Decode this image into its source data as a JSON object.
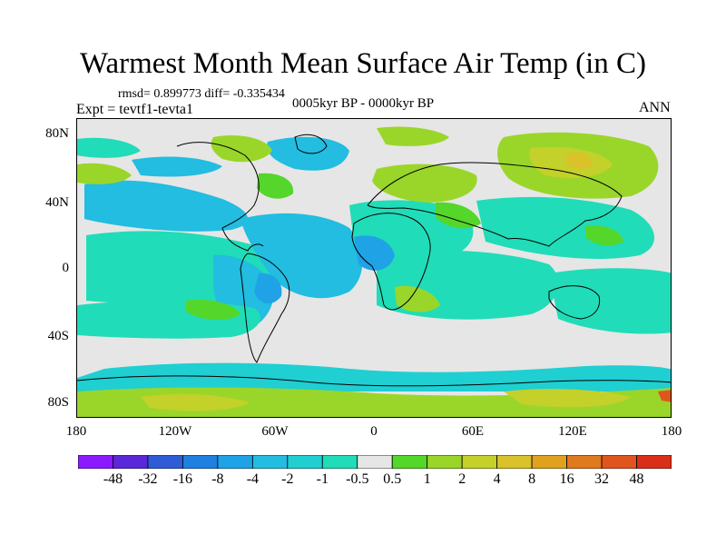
{
  "title": "Warmest Month Mean Surface Air Temp (in C)",
  "stats": "rmsd= 0.899773  diff= -0.335434",
  "experiment": "Expt = tevtf1-tevta1",
  "period": "0005kyr BP - 0000kyr BP",
  "season": "ANN",
  "lat_ticks": [
    "80N",
    "40N",
    "0",
    "40S",
    "80S"
  ],
  "lon_ticks": [
    "180",
    "120W",
    "60W",
    "0",
    "60E",
    "120E",
    "180"
  ],
  "colorbar": {
    "colors": [
      "#8c1aff",
      "#5a27d9",
      "#2f5bd6",
      "#1f80e0",
      "#1fa3e6",
      "#22bde0",
      "#1fcfd2",
      "#21dcb8",
      "#e6e6e6",
      "#55d62a",
      "#9ad62a",
      "#c3d12a",
      "#d9c22a",
      "#e0a21e",
      "#e07a1e",
      "#e0551e",
      "#d92e18"
    ],
    "labels": [
      "-48",
      "-32",
      "-16",
      "-8",
      "-4",
      "-2",
      "-1",
      "-0.5",
      "0.5",
      "1",
      "2",
      "4",
      "8",
      "16",
      "32",
      "48"
    ]
  }
}
